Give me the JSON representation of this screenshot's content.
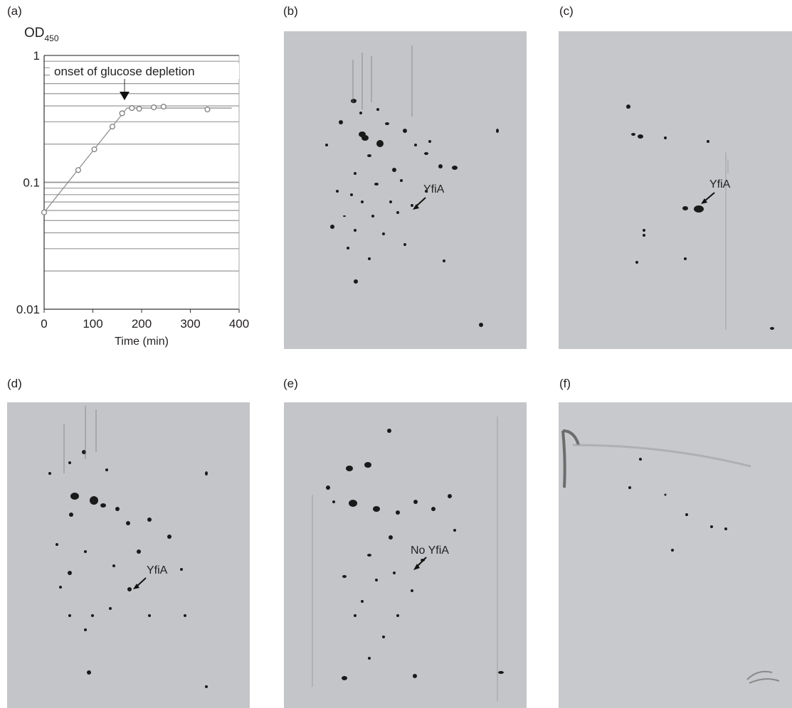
{
  "panels": {
    "a": "(a)",
    "b": "(b)",
    "c": "(c)",
    "d": "(d)",
    "e": "(e)",
    "f": "(f)"
  },
  "chart_data": {
    "type": "scatter",
    "ylabel_main": "OD",
    "ylabel_sub": "450",
    "xlabel": "Time (min)",
    "yscale": "log",
    "xlim": [
      0,
      400
    ],
    "ylim": [
      0.01,
      1
    ],
    "x_ticks": [
      "0",
      "100",
      "200",
      "300",
      "400"
    ],
    "y_ticks": [
      "1",
      "0.1",
      "0.01"
    ],
    "grid": true,
    "annotation": "onset of glucose depletion",
    "annotation_x": 170,
    "series": [
      {
        "x": [
          0,
          70,
          103,
          140,
          160,
          180,
          195,
          225,
          245,
          335
        ],
        "y": [
          0.058,
          0.125,
          0.182,
          0.275,
          0.35,
          0.385,
          0.38,
          0.39,
          0.395,
          0.375
        ]
      }
    ],
    "fit_line": {
      "x": [
        0,
        170,
        385
      ],
      "y": [
        0.058,
        0.385,
        0.385
      ]
    }
  },
  "callouts": {
    "b": "YfiA",
    "c": "YfiA",
    "d": "YfiA",
    "e": "No YfiA"
  }
}
